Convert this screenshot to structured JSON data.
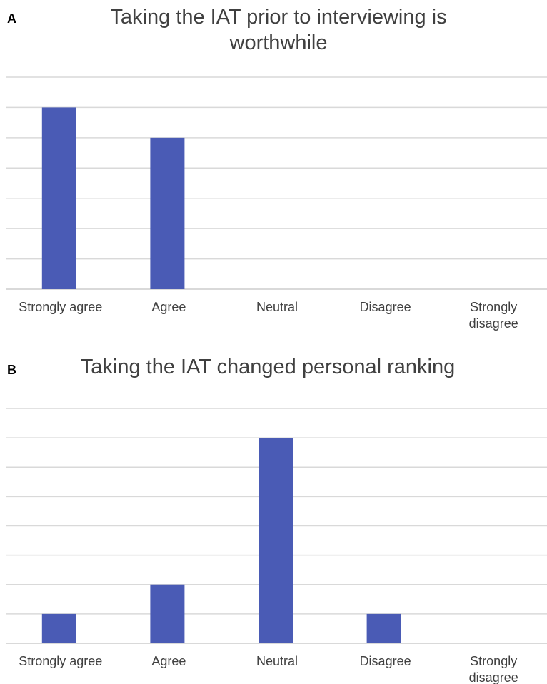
{
  "chart_data": [
    {
      "type": "bar",
      "panel_label": "A",
      "title_lines": [
        "Taking the IAT prior to interviewing is",
        "worthwhile"
      ],
      "categories": [
        [
          "Strongly agree"
        ],
        [
          "Agree"
        ],
        [
          "Neutral"
        ],
        [
          "Disagree"
        ],
        [
          "Strongly",
          "disagree"
        ]
      ],
      "values": [
        6,
        5,
        0,
        0,
        0
      ],
      "ylim": [
        0,
        7
      ],
      "grid": true,
      "color": "#4a5bb5"
    },
    {
      "type": "bar",
      "panel_label": "B",
      "title_lines": [
        "Taking the IAT changed personal ranking"
      ],
      "categories": [
        [
          "Strongly agree"
        ],
        [
          "Agree"
        ],
        [
          "Neutral"
        ],
        [
          "Disagree"
        ],
        [
          "Strongly",
          "disagree"
        ]
      ],
      "values": [
        1,
        2,
        7,
        1,
        0
      ],
      "ylim": [
        0,
        8
      ],
      "grid": true,
      "color": "#4a5bb5"
    }
  ],
  "colors": {
    "bar": "#4a5bb5",
    "grid": "#d9d9d9",
    "text": "#404040"
  }
}
